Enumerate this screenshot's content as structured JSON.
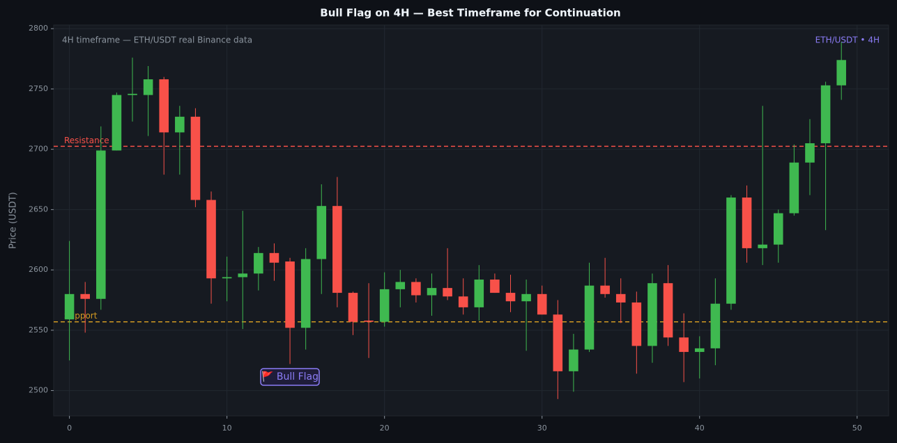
{
  "chart_data": {
    "type": "candlestick",
    "title": "Bull Flag on 4H — Best Timeframe for Continuation",
    "y_label": "Price (USDT)",
    "annotations": [
      "4H timeframe — ETH/USDT real Binance data",
      "ETH/USDT • 4H",
      "🚩 Bull Flag"
    ],
    "x": [
      0,
      1,
      2,
      3,
      4,
      5,
      6,
      7,
      8,
      9,
      10,
      11,
      12,
      13,
      14,
      15,
      16,
      17,
      18,
      19,
      20,
      21,
      22,
      23,
      24,
      25,
      26,
      27,
      28,
      29,
      30,
      31,
      32,
      33,
      34,
      35,
      36,
      37,
      38,
      39,
      40,
      41,
      42,
      43,
      44,
      45,
      46,
      47,
      48,
      49
    ],
    "open": [
      2559,
      2580,
      2576,
      2699,
      2745,
      2745,
      2758,
      2714,
      2727,
      2658,
      2593,
      2594,
      2597,
      2614,
      2607,
      2552,
      2609,
      2653,
      2581,
      2558,
      2557,
      2584,
      2590,
      2579,
      2585,
      2578,
      2569,
      2592,
      2581,
      2574,
      2580,
      2563,
      2516,
      2534,
      2587,
      2580,
      2573,
      2537,
      2589,
      2544,
      2532,
      2535,
      2572,
      2660,
      2618,
      2621,
      2647,
      2689,
      2705,
      2753
    ],
    "high": [
      2624,
      2590,
      2719,
      2747,
      2776,
      2769,
      2760,
      2736,
      2734,
      2665,
      2611,
      2649,
      2619,
      2622,
      2610,
      2618,
      2671,
      2677,
      2582,
      2589,
      2598,
      2600,
      2593,
      2597,
      2618,
      2593,
      2604,
      2597,
      2596,
      2592,
      2587,
      2575,
      2547,
      2606,
      2610,
      2593,
      2582,
      2597,
      2604,
      2564,
      2545,
      2593,
      2662,
      2670,
      2736,
      2650,
      2704,
      2725,
      2756,
      2789
    ],
    "low": [
      2525,
      2548,
      2567,
      2699,
      2723,
      2711,
      2679,
      2679,
      2652,
      2572,
      2574,
      2551,
      2583,
      2591,
      2522,
      2534,
      2580,
      2569,
      2546,
      2527,
      2553,
      2569,
      2573,
      2562,
      2575,
      2563,
      2558,
      2581,
      2565,
      2533,
      2563,
      2493,
      2499,
      2532,
      2577,
      2556,
      2514,
      2523,
      2537,
      2507,
      2510,
      2521,
      2567,
      2606,
      2604,
      2606,
      2645,
      2662,
      2633,
      2741
    ],
    "close": [
      2580,
      2576,
      2699,
      2745,
      2746,
      2758,
      2714,
      2727,
      2658,
      2593,
      2594,
      2597,
      2614,
      2606,
      2552,
      2609,
      2653,
      2581,
      2557,
      2557,
      2584,
      2590,
      2579,
      2585,
      2578,
      2569,
      2592,
      2581,
      2574,
      2580,
      2563,
      2516,
      2534,
      2587,
      2580,
      2573,
      2537,
      2589,
      2544,
      2532,
      2535,
      2572,
      2660,
      2618,
      2621,
      2647,
      2689,
      2705,
      2753,
      2774
    ],
    "up_color": "#3fb950",
    "down_color": "#f85149",
    "levels": [
      {
        "name": "Resistance",
        "value": 2702.5,
        "color": "#f85149"
      },
      {
        "name": "Support",
        "value": 2557,
        "color": "#d29922"
      }
    ],
    "xlim": [
      -1,
      52
    ],
    "ylim": [
      2479,
      2803
    ],
    "xticks": [
      0,
      10,
      20,
      30,
      40,
      50
    ],
    "yticks": [
      2500,
      2550,
      2600,
      2650,
      2700,
      2750,
      2800
    ],
    "grid": true
  }
}
